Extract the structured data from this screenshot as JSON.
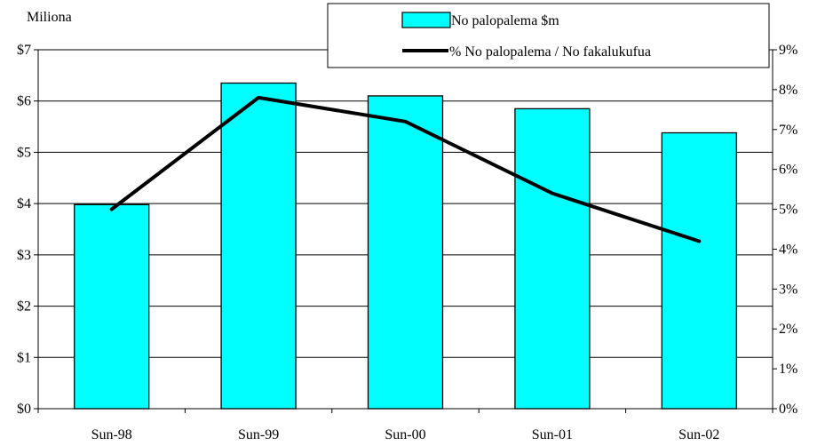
{
  "chart_data": {
    "type": "bar",
    "categories": [
      "Sun-98",
      "Sun-99",
      "Sun-00",
      "Sun-01",
      "Sun-02"
    ],
    "series": [
      {
        "name": "No palopalema $m",
        "type": "bar",
        "axis": "left",
        "values": [
          3.98,
          6.35,
          6.1,
          5.85,
          5.38
        ]
      },
      {
        "name": "% No palopalema / No fakalukufua",
        "type": "line",
        "axis": "right",
        "values": [
          5.0,
          7.8,
          7.2,
          5.4,
          4.2
        ]
      }
    ],
    "left_axis": {
      "unit_label": "Miliona",
      "ylim": [
        0,
        7
      ],
      "ticks": [
        "$0",
        "$1",
        "$2",
        "$3",
        "$4",
        "$5",
        "$6",
        "$7"
      ]
    },
    "right_axis": {
      "ylim": [
        0,
        9
      ],
      "ticks": [
        "0%",
        "1%",
        "2%",
        "3%",
        "4%",
        "5%",
        "6%",
        "7%",
        "8%",
        "9%"
      ]
    },
    "grid": "horizontal",
    "legend_position": "top-right",
    "colors": {
      "bar_fill": "#00FFFF",
      "bar_stroke": "#000000",
      "line": "#000000"
    }
  }
}
